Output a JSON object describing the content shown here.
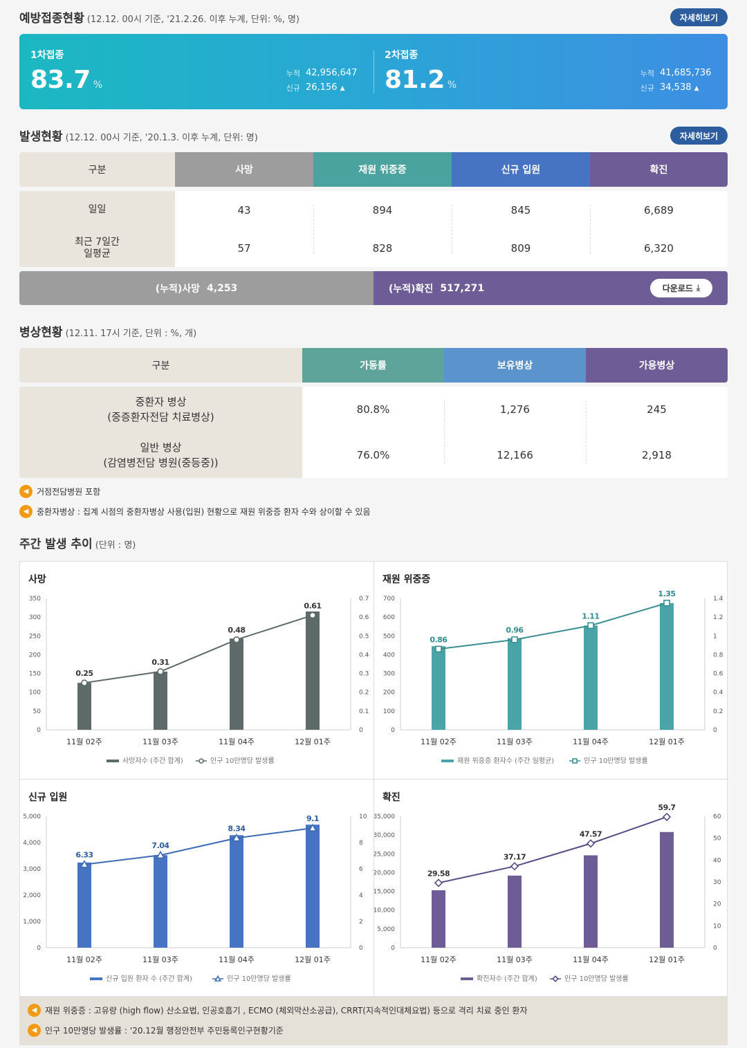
{
  "vaccination": {
    "title": "예방접종현황",
    "subtitle": "(12.12. 00시 기준, '21.2.26. 이후 누계, 단위: %, 명)",
    "more": "자세히보기",
    "first": {
      "label": "1차접종",
      "pct": "83.7",
      "unit": "%",
      "cum_label": "누적",
      "cum": "42,956,647",
      "new_label": "신규",
      "new": "26,156"
    },
    "second": {
      "label": "2차접종",
      "pct": "81.2",
      "unit": "%",
      "cum_label": "누적",
      "cum": "41,685,736",
      "new_label": "신규",
      "new": "34,538"
    },
    "up_arrow": "▲"
  },
  "occurrence": {
    "title": "발생현황",
    "subtitle": "(12.12. 00시 기준, '20.1.3. 이후 누계, 단위: 명)",
    "more": "자세히보기",
    "headers": [
      "구분",
      "사망",
      "재원 위중증",
      "신규 입원",
      "확진"
    ],
    "header_colors": [
      "#e9e5dd",
      "#9d9d9d",
      "#4aa39f",
      "#4674c2",
      "#6e5c96"
    ],
    "rows": [
      {
        "label": "일일",
        "values": [
          "43",
          "894",
          "845",
          "6,689"
        ]
      },
      {
        "label": "최근 7일간\n일평균",
        "values": [
          "57",
          "828",
          "809",
          "6,320"
        ]
      }
    ],
    "cum_death_label": "(누적)사망",
    "cum_death": "4,253",
    "cum_confirmed_label": "(누적)확진",
    "cum_confirmed": "517,271",
    "download": "다운로드",
    "download_icon": "download-icon"
  },
  "beds": {
    "title": "병상현황",
    "subtitle": "(12.11. 17시 기준, 단위 : %, 개)",
    "headers": [
      "구분",
      "가동률",
      "보유병상",
      "가용병상"
    ],
    "header_colors": [
      "#e9e5dd",
      "#5fa49a",
      "#5b94cc",
      "#6e5c96"
    ],
    "rows": [
      {
        "label1": "중환자 병상",
        "label2": "(중증환자전담 치료병상)",
        "values": [
          "80.8%",
          "1,276",
          "245"
        ]
      },
      {
        "label1": "일반 병상",
        "label2": "(감염병전담 병원(중등중))",
        "values": [
          "76.0%",
          "12,166",
          "2,918"
        ]
      }
    ],
    "notes": [
      "거점전담병원 포함",
      "중환자병상 : 집계 시점의 중환자병상 사용(입원) 현황으로 재원 위중증 환자 수와 상이할 수 있음"
    ]
  },
  "weekly": {
    "title": "주간 발생 추이",
    "subtitle": "(단위 : 명)",
    "notes": [
      "재원 위중증 : 고유량 (high flow) 산소요법, 인공호흡기 , ECMO (체외막산소공급), CRRT(지속적인대체요법) 등으로 격리 치료 중인 환자",
      "인구 10만명당 발생률 : '20.12월 행정안전부 주민등록인구현황기준"
    ]
  },
  "chart_data": [
    {
      "type": "bar",
      "title": "사망",
      "categories": [
        "11월 02주",
        "11월 03주",
        "11월 04주",
        "12월 01주"
      ],
      "series": [
        {
          "name": "사망자수 (주간 합계)",
          "values": [
            125,
            155,
            243,
            315
          ],
          "color": "#5e6a69"
        },
        {
          "name": "인구 10만명당 발생률",
          "values": [
            0.25,
            0.31,
            0.48,
            0.61
          ],
          "color": "#5e6a69",
          "axis": "right",
          "kind": "line",
          "marker": "circle"
        }
      ],
      "yticks": [
        "0",
        "50",
        "100",
        "150",
        "200",
        "250",
        "300",
        "350"
      ],
      "ylim": [
        0,
        350
      ],
      "y2ticks": [
        "0",
        "0.1",
        "0.2",
        "0.3",
        "0.4",
        "0.5",
        "0.6",
        "0.7"
      ],
      "y2lim": [
        0,
        0.7
      ],
      "point_labels": [
        "0.25",
        "0.31",
        "0.48",
        "0.61"
      ],
      "label_color": "#333333"
    },
    {
      "type": "bar",
      "title": "재원 위중증",
      "categories": [
        "11월 02주",
        "11월 03주",
        "11월 04주",
        "12월 01주"
      ],
      "series": [
        {
          "name": "재원 위중증 환자수 (주간 일평균)",
          "values": [
            445,
            488,
            555,
            675
          ],
          "color": "#4aa3a6"
        },
        {
          "name": "인구 10만명당 발생률",
          "values": [
            0.86,
            0.96,
            1.11,
            1.35
          ],
          "color": "#3a8d91",
          "axis": "right",
          "kind": "line",
          "marker": "square"
        }
      ],
      "yticks": [
        "0",
        "100",
        "200",
        "300",
        "400",
        "500",
        "600",
        "700"
      ],
      "ylim": [
        0,
        700
      ],
      "y2ticks": [
        "0",
        "0.2",
        "0.4",
        "0.6",
        "0.8",
        "1",
        "1.2",
        "1.4"
      ],
      "y2lim": [
        0,
        1.4
      ],
      "point_labels": [
        "0.86",
        "0.96",
        "1.11",
        "1.35"
      ],
      "label_color": "#2f8b91"
    },
    {
      "type": "bar",
      "title": "신규 입원",
      "categories": [
        "11월 02주",
        "11월 03주",
        "11월 04주",
        "12월 01주"
      ],
      "series": [
        {
          "name": "신규 입원 환자 수 (주간 합계)",
          "values": [
            3240,
            3520,
            4280,
            4680
          ],
          "color": "#4674c2"
        },
        {
          "name": "인구 10만명당 발생률",
          "values": [
            6.33,
            7.04,
            8.34,
            9.1
          ],
          "color": "#3d6bb3",
          "axis": "right",
          "kind": "line",
          "marker": "triangle"
        }
      ],
      "yticks": [
        "0",
        "1,000",
        "2,000",
        "3,000",
        "4,000",
        "5,000"
      ],
      "ylim": [
        0,
        5000
      ],
      "y2ticks": [
        "0",
        "2",
        "4",
        "6",
        "8",
        "10"
      ],
      "y2lim": [
        0,
        10
      ],
      "point_labels": [
        "6.33",
        "7.04",
        "8.34",
        "9.1"
      ],
      "label_color": "#2d5d9f"
    },
    {
      "type": "bar",
      "title": "확진",
      "categories": [
        "11월 02주",
        "11월 03주",
        "11월 04주",
        "12월 01주"
      ],
      "series": [
        {
          "name": "확진자수 (주간 합계)",
          "values": [
            15300,
            19200,
            24600,
            30800
          ],
          "color": "#6e5c96"
        },
        {
          "name": "인구 10만명당 발생률",
          "values": [
            29.58,
            37.17,
            47.57,
            59.7
          ],
          "color": "#5a4a86",
          "axis": "right",
          "kind": "line",
          "marker": "diamond"
        }
      ],
      "yticks": [
        "0",
        "5,000",
        "10,000",
        "15,000",
        "20,000",
        "25,000",
        "30,000",
        "35,000"
      ],
      "ylim": [
        0,
        35000
      ],
      "y2ticks": [
        "0",
        "10",
        "20",
        "30",
        "40",
        "50",
        "60"
      ],
      "y2lim": [
        0,
        60
      ],
      "point_labels": [
        "29.58",
        "37.17",
        "47.57",
        "59.7"
      ],
      "label_color": "#333333"
    }
  ]
}
